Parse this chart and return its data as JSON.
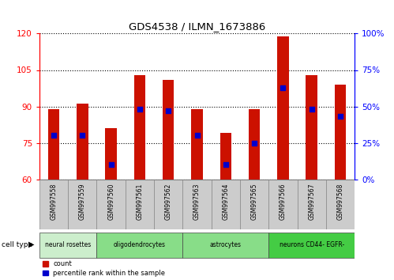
{
  "title": "GDS4538 / ILMN_1673886",
  "samples": [
    "GSM997558",
    "GSM997559",
    "GSM997560",
    "GSM997561",
    "GSM997562",
    "GSM997563",
    "GSM997564",
    "GSM997565",
    "GSM997566",
    "GSM997567",
    "GSM997568"
  ],
  "counts": [
    89,
    91,
    81,
    103,
    101,
    89,
    79,
    89,
    119,
    103,
    99
  ],
  "percentiles": [
    30,
    30,
    10,
    48,
    47,
    30,
    10,
    25,
    63,
    48,
    43
  ],
  "ylim_left": [
    60,
    120
  ],
  "ylim_right": [
    0,
    100
  ],
  "yticks_left": [
    60,
    75,
    90,
    105,
    120
  ],
  "yticks_right": [
    0,
    25,
    50,
    75,
    100
  ],
  "cell_types": [
    {
      "label": "neural rosettes",
      "start": 0,
      "end": 1,
      "color": "#cceecc"
    },
    {
      "label": "oligodendrocytes",
      "start": 2,
      "end": 4,
      "color": "#88dd88"
    },
    {
      "label": "astrocytes",
      "start": 5,
      "end": 7,
      "color": "#88dd88"
    },
    {
      "label": "neurons CD44- EGFR-",
      "start": 8,
      "end": 10,
      "color": "#44cc44"
    }
  ],
  "bar_color": "#cc1100",
  "dot_color": "#0000cc",
  "bar_width": 0.4,
  "tick_bg": "#cccccc",
  "bg_color": "#ffffff"
}
